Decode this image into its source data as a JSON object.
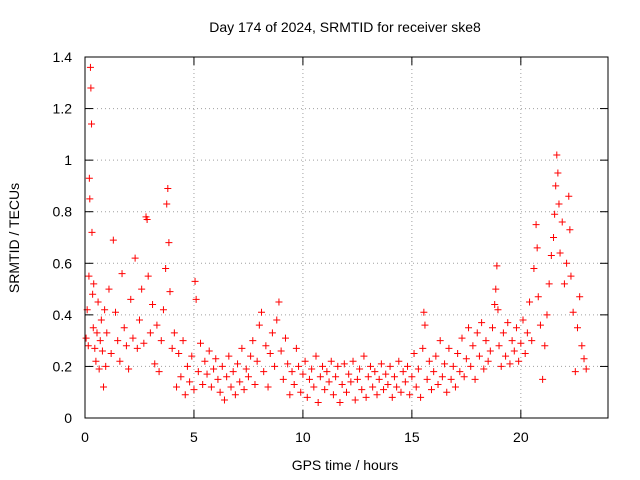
{
  "chart_data": {
    "type": "scatter",
    "title": "Day 174 of 2024, SRMTID for receiver ske8",
    "xlabel": "GPS time / hours",
    "ylabel": "SRMTID / TECUs",
    "xlim": [
      0,
      24
    ],
    "ylim": [
      0,
      1.4
    ],
    "xticks": [
      0,
      5,
      10,
      15,
      20
    ],
    "xtick_labels": [
      "0",
      "5",
      "10",
      "15",
      "20"
    ],
    "yticks": [
      0,
      0.2,
      0.4,
      0.6,
      0.8,
      1,
      1.2,
      1.4
    ],
    "ytick_labels": [
      "0",
      "0.2",
      "0.4",
      "0.6",
      "0.8",
      "1",
      "1.2",
      "1.4"
    ],
    "grid": true,
    "marker": "+",
    "color": "#ff0000",
    "series": [
      {
        "name": "SRMTID",
        "points": [
          [
            0.05,
            0.31
          ],
          [
            0.1,
            0.42
          ],
          [
            0.15,
            0.28
          ],
          [
            0.18,
            0.55
          ],
          [
            0.2,
            0.93
          ],
          [
            0.22,
            0.85
          ],
          [
            0.25,
            1.36
          ],
          [
            0.27,
            1.28
          ],
          [
            0.3,
            1.14
          ],
          [
            0.32,
            0.72
          ],
          [
            0.35,
            0.48
          ],
          [
            0.38,
            0.35
          ],
          [
            0.4,
            0.52
          ],
          [
            0.45,
            0.27
          ],
          [
            0.5,
            0.22
          ],
          [
            0.55,
            0.33
          ],
          [
            0.6,
            0.45
          ],
          [
            0.65,
            0.19
          ],
          [
            0.7,
            0.3
          ],
          [
            0.75,
            0.38
          ],
          [
            0.8,
            0.26
          ],
          [
            0.85,
            0.12
          ],
          [
            0.9,
            0.42
          ],
          [
            0.95,
            0.2
          ],
          [
            1.0,
            0.33
          ],
          [
            1.1,
            0.5
          ],
          [
            1.2,
            0.25
          ],
          [
            1.3,
            0.69
          ],
          [
            1.4,
            0.41
          ],
          [
            1.5,
            0.3
          ],
          [
            1.6,
            0.22
          ],
          [
            1.7,
            0.56
          ],
          [
            1.8,
            0.35
          ],
          [
            1.9,
            0.28
          ],
          [
            2.0,
            0.19
          ],
          [
            2.1,
            0.46
          ],
          [
            2.2,
            0.31
          ],
          [
            2.3,
            0.62
          ],
          [
            2.4,
            0.27
          ],
          [
            2.5,
            0.38
          ],
          [
            2.6,
            0.5
          ],
          [
            2.7,
            0.29
          ],
          [
            2.8,
            0.78
          ],
          [
            2.85,
            0.77
          ],
          [
            2.9,
            0.55
          ],
          [
            3.0,
            0.33
          ],
          [
            3.1,
            0.44
          ],
          [
            3.2,
            0.21
          ],
          [
            3.3,
            0.36
          ],
          [
            3.4,
            0.18
          ],
          [
            3.5,
            0.3
          ],
          [
            3.6,
            0.42
          ],
          [
            3.7,
            0.58
          ],
          [
            3.75,
            0.83
          ],
          [
            3.8,
            0.89
          ],
          [
            3.85,
            0.68
          ],
          [
            3.9,
            0.49
          ],
          [
            4.0,
            0.27
          ],
          [
            4.1,
            0.33
          ],
          [
            4.2,
            0.12
          ],
          [
            4.3,
            0.25
          ],
          [
            4.4,
            0.16
          ],
          [
            4.5,
            0.3
          ],
          [
            4.6,
            0.09
          ],
          [
            4.7,
            0.2
          ],
          [
            4.8,
            0.14
          ],
          [
            4.9,
            0.24
          ],
          [
            5.0,
            0.11
          ],
          [
            5.05,
            0.53
          ],
          [
            5.1,
            0.46
          ],
          [
            5.2,
            0.18
          ],
          [
            5.3,
            0.29
          ],
          [
            5.4,
            0.13
          ],
          [
            5.5,
            0.22
          ],
          [
            5.6,
            0.17
          ],
          [
            5.7,
            0.26
          ],
          [
            5.8,
            0.12
          ],
          [
            5.9,
            0.19
          ],
          [
            6.0,
            0.23
          ],
          [
            6.1,
            0.15
          ],
          [
            6.2,
            0.1
          ],
          [
            6.3,
            0.2
          ],
          [
            6.4,
            0.07
          ],
          [
            6.5,
            0.16
          ],
          [
            6.6,
            0.24
          ],
          [
            6.7,
            0.12
          ],
          [
            6.8,
            0.18
          ],
          [
            6.9,
            0.09
          ],
          [
            7.0,
            0.21
          ],
          [
            7.1,
            0.14
          ],
          [
            7.2,
            0.27
          ],
          [
            7.3,
            0.11
          ],
          [
            7.4,
            0.19
          ],
          [
            7.5,
            0.16
          ],
          [
            7.6,
            0.24
          ],
          [
            7.7,
            0.3
          ],
          [
            7.8,
            0.13
          ],
          [
            7.9,
            0.22
          ],
          [
            8.0,
            0.36
          ],
          [
            8.1,
            0.41
          ],
          [
            8.2,
            0.18
          ],
          [
            8.3,
            0.28
          ],
          [
            8.4,
            0.12
          ],
          [
            8.5,
            0.25
          ],
          [
            8.6,
            0.33
          ],
          [
            8.7,
            0.2
          ],
          [
            8.8,
            0.38
          ],
          [
            8.9,
            0.45
          ],
          [
            9.0,
            0.26
          ],
          [
            9.1,
            0.15
          ],
          [
            9.2,
            0.31
          ],
          [
            9.3,
            0.21
          ],
          [
            9.4,
            0.09
          ],
          [
            9.5,
            0.18
          ],
          [
            9.6,
            0.13
          ],
          [
            9.7,
            0.27
          ],
          [
            9.8,
            0.2
          ],
          [
            9.9,
            0.1
          ],
          [
            10.0,
            0.17
          ],
          [
            10.1,
            0.22
          ],
          [
            10.2,
            0.08
          ],
          [
            10.3,
            0.15
          ],
          [
            10.4,
            0.19
          ],
          [
            10.5,
            0.12
          ],
          [
            10.6,
            0.24
          ],
          [
            10.7,
            0.06
          ],
          [
            10.8,
            0.16
          ],
          [
            10.9,
            0.2
          ],
          [
            11.0,
            0.11
          ],
          [
            11.1,
            0.18
          ],
          [
            11.2,
            0.14
          ],
          [
            11.3,
            0.22
          ],
          [
            11.4,
            0.09
          ],
          [
            11.5,
            0.16
          ],
          [
            11.6,
            0.2
          ],
          [
            11.7,
            0.06
          ],
          [
            11.8,
            0.13
          ],
          [
            11.9,
            0.21
          ],
          [
            12.0,
            0.1
          ],
          [
            12.1,
            0.17
          ],
          [
            12.2,
            0.14
          ],
          [
            12.3,
            0.22
          ],
          [
            12.4,
            0.07
          ],
          [
            12.5,
            0.15
          ],
          [
            12.6,
            0.19
          ],
          [
            12.7,
            0.11
          ],
          [
            12.8,
            0.24
          ],
          [
            12.9,
            0.08
          ],
          [
            13.0,
            0.16
          ],
          [
            13.1,
            0.2
          ],
          [
            13.2,
            0.12
          ],
          [
            13.3,
            0.18
          ],
          [
            13.4,
            0.09
          ],
          [
            13.5,
            0.15
          ],
          [
            13.6,
            0.21
          ],
          [
            13.7,
            0.11
          ],
          [
            13.8,
            0.17
          ],
          [
            13.9,
            0.13
          ],
          [
            14.0,
            0.2
          ],
          [
            14.1,
            0.08
          ],
          [
            14.2,
            0.16
          ],
          [
            14.3,
            0.12
          ],
          [
            14.4,
            0.22
          ],
          [
            14.5,
            0.1
          ],
          [
            14.6,
            0.18
          ],
          [
            14.7,
            0.14
          ],
          [
            14.8,
            0.2
          ],
          [
            14.9,
            0.09
          ],
          [
            15.0,
            0.16
          ],
          [
            15.1,
            0.25
          ],
          [
            15.2,
            0.12
          ],
          [
            15.3,
            0.19
          ],
          [
            15.4,
            0.08
          ],
          [
            15.5,
            0.27
          ],
          [
            15.55,
            0.41
          ],
          [
            15.6,
            0.36
          ],
          [
            15.7,
            0.15
          ],
          [
            15.8,
            0.22
          ],
          [
            15.9,
            0.11
          ],
          [
            16.0,
            0.18
          ],
          [
            16.1,
            0.24
          ],
          [
            16.2,
            0.13
          ],
          [
            16.3,
            0.3
          ],
          [
            16.4,
            0.16
          ],
          [
            16.5,
            0.21
          ],
          [
            16.6,
            0.1
          ],
          [
            16.7,
            0.27
          ],
          [
            16.8,
            0.15
          ],
          [
            16.9,
            0.2
          ],
          [
            17.0,
            0.12
          ],
          [
            17.1,
            0.25
          ],
          [
            17.2,
            0.18
          ],
          [
            17.3,
            0.31
          ],
          [
            17.4,
            0.16
          ],
          [
            17.5,
            0.23
          ],
          [
            17.6,
            0.35
          ],
          [
            17.7,
            0.2
          ],
          [
            17.8,
            0.28
          ],
          [
            17.9,
            0.15
          ],
          [
            18.0,
            0.33
          ],
          [
            18.1,
            0.24
          ],
          [
            18.2,
            0.37
          ],
          [
            18.3,
            0.19
          ],
          [
            18.4,
            0.3
          ],
          [
            18.5,
            0.22
          ],
          [
            18.6,
            0.26
          ],
          [
            18.7,
            0.35
          ],
          [
            18.8,
            0.44
          ],
          [
            18.85,
            0.5
          ],
          [
            18.9,
            0.59
          ],
          [
            18.95,
            0.42
          ],
          [
            19.0,
            0.28
          ],
          [
            19.1,
            0.2
          ],
          [
            19.2,
            0.33
          ],
          [
            19.3,
            0.24
          ],
          [
            19.4,
            0.37
          ],
          [
            19.5,
            0.21
          ],
          [
            19.6,
            0.3
          ],
          [
            19.7,
            0.26
          ],
          [
            19.8,
            0.35
          ],
          [
            19.9,
            0.22
          ],
          [
            20.0,
            0.29
          ],
          [
            20.1,
            0.38
          ],
          [
            20.2,
            0.25
          ],
          [
            20.3,
            0.33
          ],
          [
            20.4,
            0.45
          ],
          [
            20.5,
            0.3
          ],
          [
            20.6,
            0.58
          ],
          [
            20.7,
            0.75
          ],
          [
            20.75,
            0.66
          ],
          [
            20.8,
            0.47
          ],
          [
            20.9,
            0.36
          ],
          [
            21.0,
            0.15
          ],
          [
            21.1,
            0.28
          ],
          [
            21.2,
            0.4
          ],
          [
            21.3,
            0.52
          ],
          [
            21.4,
            0.63
          ],
          [
            21.5,
            0.7
          ],
          [
            21.55,
            0.79
          ],
          [
            21.6,
            0.9
          ],
          [
            21.65,
            1.02
          ],
          [
            21.7,
            0.95
          ],
          [
            21.75,
            0.83
          ],
          [
            21.8,
            0.64
          ],
          [
            21.9,
            0.76
          ],
          [
            22.0,
            0.52
          ],
          [
            22.1,
            0.6
          ],
          [
            22.2,
            0.86
          ],
          [
            22.25,
            0.73
          ],
          [
            22.3,
            0.55
          ],
          [
            22.4,
            0.41
          ],
          [
            22.5,
            0.18
          ],
          [
            22.6,
            0.35
          ],
          [
            22.7,
            0.47
          ],
          [
            22.8,
            0.28
          ],
          [
            22.9,
            0.23
          ],
          [
            23.0,
            0.19
          ]
        ]
      }
    ]
  }
}
